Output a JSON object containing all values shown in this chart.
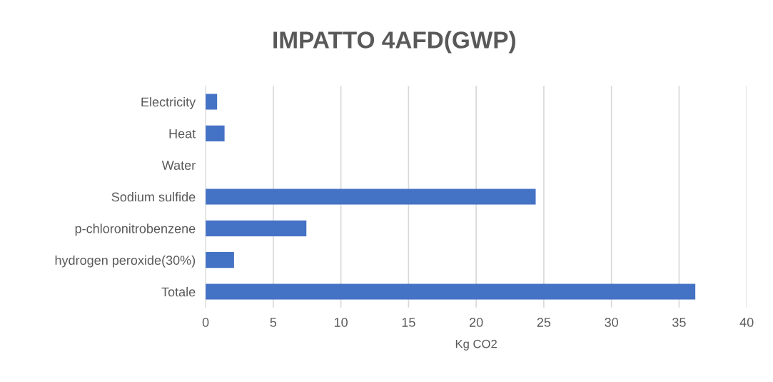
{
  "chart_data": {
    "type": "bar",
    "orientation": "horizontal",
    "title": "IMPATTO 4AFD(GWP)",
    "xlabel": "Kg CO2",
    "categories": [
      "Electricity",
      "Heat",
      "Water",
      "Sodium sulfide",
      "p-chloronitrobenzene",
      "hydrogen peroxide(30%)",
      "Totale"
    ],
    "values": [
      0.85,
      1.4,
      0,
      24.4,
      7.45,
      2.1,
      36.2
    ],
    "color": "#4472c4",
    "xlim": [
      0,
      40
    ],
    "xticks": [
      0,
      5,
      10,
      15,
      20,
      25,
      30,
      35,
      40
    ],
    "grid": "x",
    "legend": false
  }
}
